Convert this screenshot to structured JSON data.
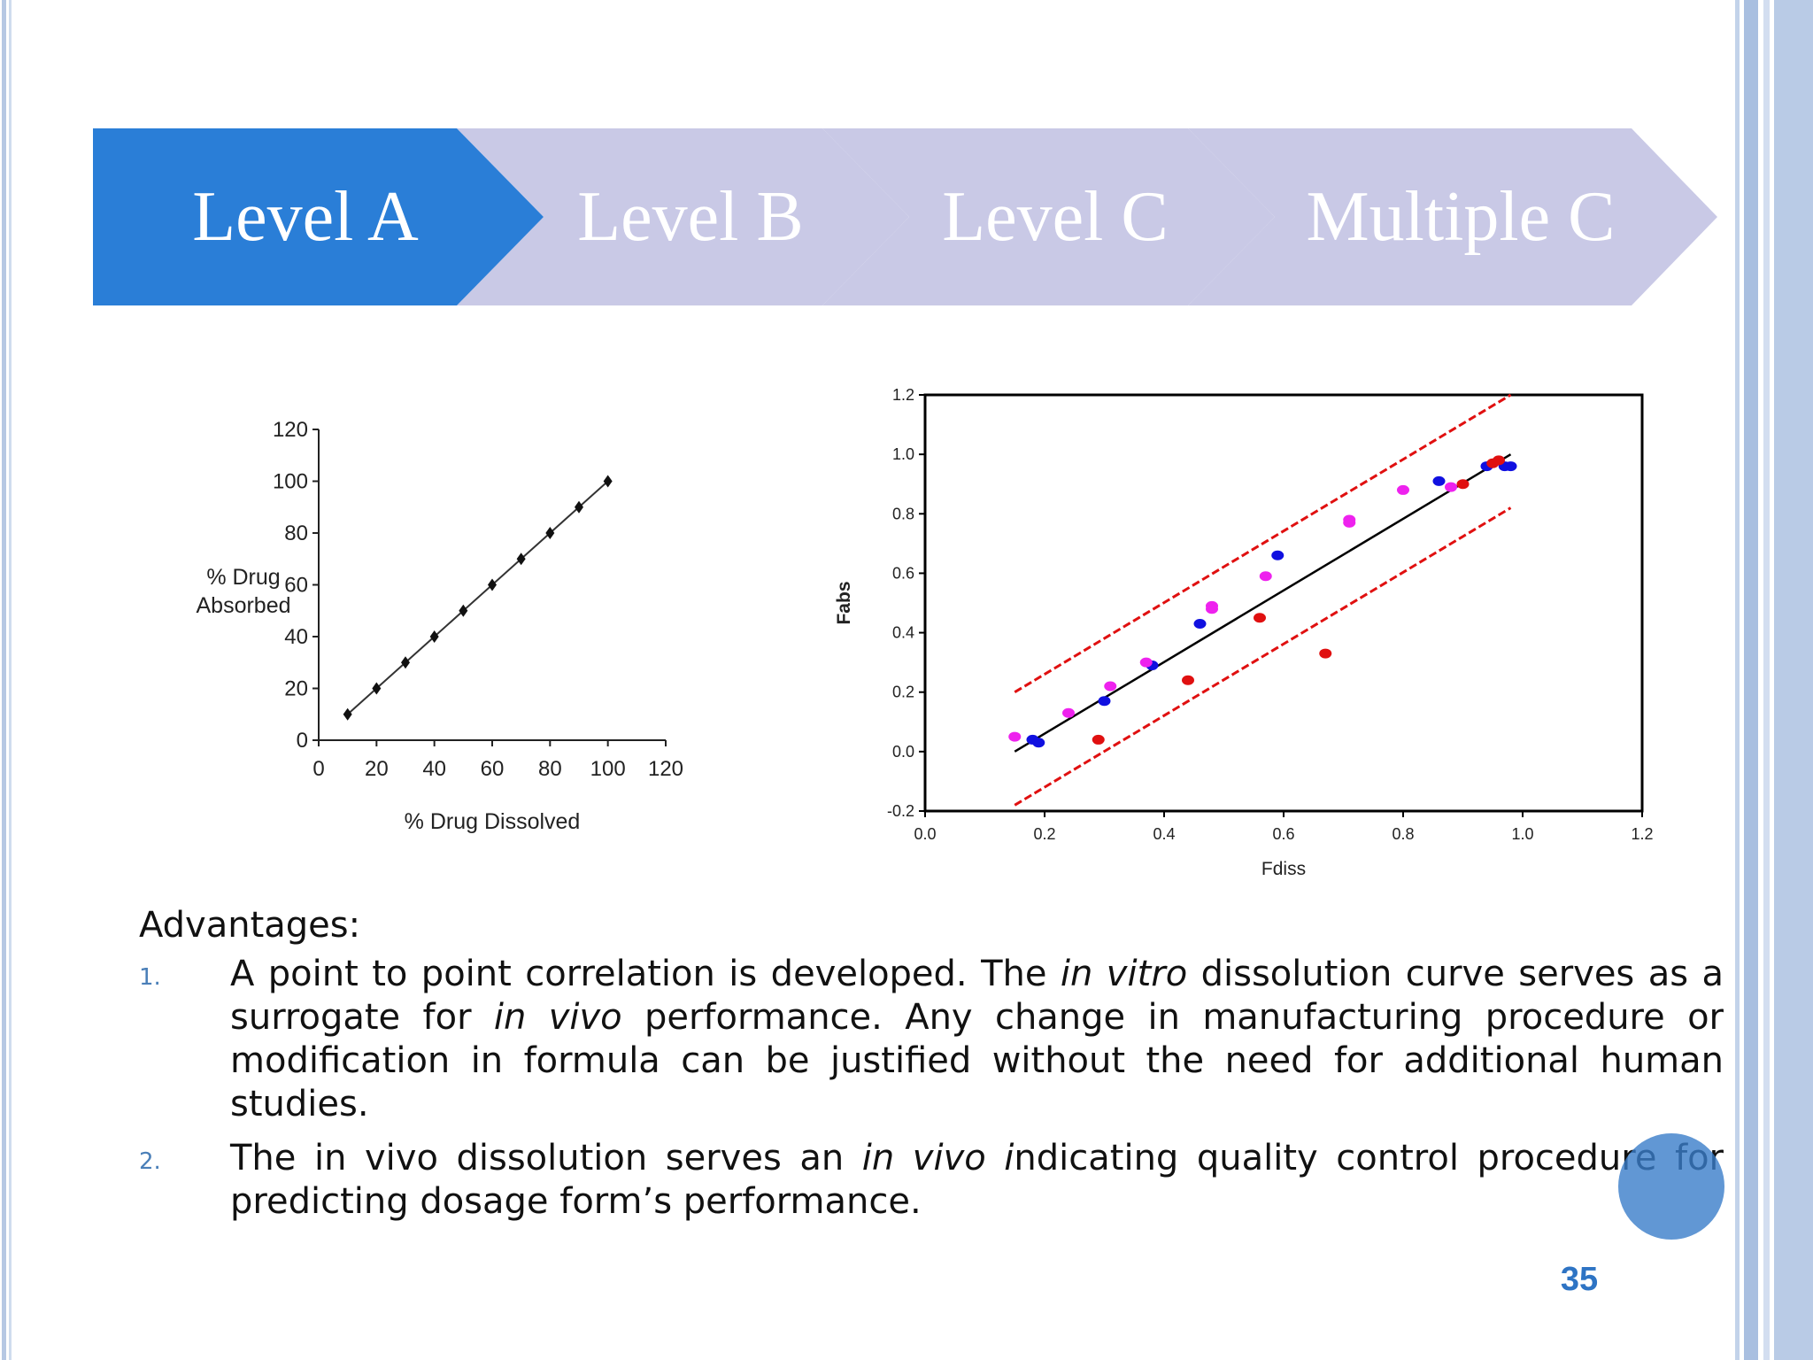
{
  "colors": {
    "active_chevron": "#2a7ed7",
    "inactive_chevron": "#c9c9e6",
    "frame": "#b6c8e3",
    "page_number": "#2e74c4"
  },
  "chevrons": [
    {
      "label": "Level A",
      "active": true
    },
    {
      "label": "Level B",
      "active": false
    },
    {
      "label": "Level C",
      "active": false
    },
    {
      "label": "Multiple C",
      "active": false
    }
  ],
  "chart_data": [
    {
      "type": "line",
      "xlabel": "% Drug Dissolved",
      "ylabel": "% Drug\nAbsorbed",
      "xlim": [
        0,
        120
      ],
      "ylim": [
        0,
        120
      ],
      "xticks": [
        0,
        20,
        40,
        60,
        80,
        100,
        120
      ],
      "yticks": [
        0,
        20,
        40,
        60,
        80,
        100,
        120
      ],
      "series": [
        {
          "x": [
            10,
            20,
            30,
            40,
            50,
            60,
            70,
            80,
            90,
            100
          ],
          "values": [
            10,
            20,
            30,
            40,
            50,
            60,
            70,
            80,
            90,
            100
          ]
        }
      ],
      "grid": false
    },
    {
      "type": "scatter",
      "xlabel": "Fdiss",
      "ylabel": "Fabs",
      "xlim": [
        0.0,
        1.2
      ],
      "ylim": [
        -0.2,
        1.2
      ],
      "xticks": [
        "0.0",
        "0.2",
        "0.4",
        "0.6",
        "0.8",
        "1.0",
        "1.2"
      ],
      "yticks": [
        "-0.2",
        "0.0",
        "0.2",
        "0.4",
        "0.6",
        "0.8",
        "1.0",
        "1.2"
      ],
      "fit_line": {
        "x": [
          0.15,
          0.98
        ],
        "y": [
          0.0,
          1.0
        ],
        "color": "#000000"
      },
      "prediction_bands": [
        {
          "x": [
            0.15,
            0.98
          ],
          "y": [
            0.2,
            1.2
          ],
          "color": "#e01010",
          "style": "dashed"
        },
        {
          "x": [
            0.15,
            0.98
          ],
          "y": [
            -0.18,
            0.82
          ],
          "color": "#e01010",
          "style": "dashed"
        }
      ],
      "series": [
        {
          "color": "#1010e0",
          "points": [
            [
              0.18,
              0.04
            ],
            [
              0.19,
              0.03
            ],
            [
              0.3,
              0.17
            ],
            [
              0.38,
              0.29
            ],
            [
              0.46,
              0.43
            ],
            [
              0.59,
              0.66
            ],
            [
              0.86,
              0.91
            ],
            [
              0.94,
              0.96
            ],
            [
              0.97,
              0.96
            ],
            [
              0.98,
              0.96
            ]
          ]
        },
        {
          "color": "#e01010",
          "points": [
            [
              0.29,
              0.04
            ],
            [
              0.44,
              0.24
            ],
            [
              0.56,
              0.45
            ],
            [
              0.67,
              0.33
            ],
            [
              0.9,
              0.9
            ],
            [
              0.95,
              0.97
            ],
            [
              0.96,
              0.98
            ]
          ]
        },
        {
          "color": "#ee22ee",
          "points": [
            [
              0.15,
              0.05
            ],
            [
              0.24,
              0.13
            ],
            [
              0.31,
              0.22
            ],
            [
              0.37,
              0.3
            ],
            [
              0.48,
              0.48
            ],
            [
              0.48,
              0.49
            ],
            [
              0.57,
              0.59
            ],
            [
              0.71,
              0.78
            ],
            [
              0.71,
              0.77
            ],
            [
              0.8,
              0.88
            ],
            [
              0.88,
              0.89
            ]
          ]
        }
      ],
      "grid": false
    }
  ],
  "content": {
    "advantages_title": "Advantages:",
    "items": [
      {
        "number": "1.",
        "runs": [
          {
            "text": "A point to point correlation is developed. The ",
            "italic": false
          },
          {
            "text": "in vitro",
            "italic": true
          },
          {
            "text": " dissolution curve serves as a surrogate for ",
            "italic": false
          },
          {
            "text": "in vivo",
            "italic": true
          },
          {
            "text": " performance. Any change in manufacturing procedure or modification in formula can be justified without the need for additional human studies.",
            "italic": false
          }
        ]
      },
      {
        "number": "2.",
        "runs": [
          {
            "text": "The in vivo dissolution serves an ",
            "italic": false
          },
          {
            "text": "in vivo i",
            "italic": true
          },
          {
            "text": "ndicating quality control procedure for predicting dosage form’s performance.",
            "italic": false
          }
        ]
      }
    ]
  },
  "page_number": "35"
}
